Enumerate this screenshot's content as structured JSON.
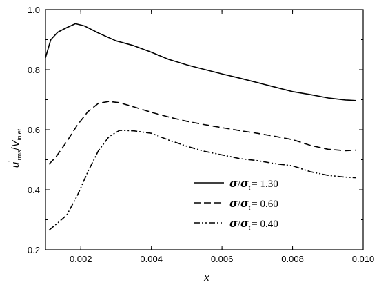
{
  "chart_data": {
    "type": "line",
    "xlabel": "x",
    "ylabel": {
      "main": "u",
      "prime": "'",
      "sub": "rms",
      "slash": "/",
      "main2": "V",
      "sub2": "inlet"
    },
    "xlim": [
      0.001,
      0.01
    ],
    "ylim": [
      0.2,
      1.0
    ],
    "x_ticks": [
      0.002,
      0.004,
      0.006,
      0.008,
      0.01
    ],
    "x_tick_labels": [
      "0.002",
      "0.004",
      "0.006",
      "0.008",
      "0.010"
    ],
    "y_ticks": [
      0.2,
      0.4,
      0.6,
      0.8,
      1.0
    ],
    "y_tick_labels": [
      "0.2",
      "0.4",
      "0.6",
      "0.8",
      "1.0"
    ],
    "grid": false,
    "legend_position": "center-right",
    "series": [
      {
        "name": "σ/σt = 1.30",
        "legend": {
          "sym1": "σ",
          "slash": "/",
          "sym2": "σ",
          "sub": "t",
          "value": "= 1.30"
        },
        "dash": "solid",
        "x": [
          0.001,
          0.00115,
          0.00135,
          0.0016,
          0.00185,
          0.0021,
          0.0025,
          0.003,
          0.0035,
          0.004,
          0.0045,
          0.005,
          0.0055,
          0.006,
          0.0065,
          0.007,
          0.0075,
          0.008,
          0.0085,
          0.009,
          0.0095,
          0.0098
        ],
        "y": [
          0.84,
          0.9,
          0.925,
          0.94,
          0.953,
          0.946,
          0.922,
          0.896,
          0.88,
          0.858,
          0.834,
          0.816,
          0.801,
          0.786,
          0.772,
          0.757,
          0.742,
          0.727,
          0.717,
          0.706,
          0.699,
          0.697
        ]
      },
      {
        "name": "σ/σt = 0.60",
        "legend": {
          "sym1": "σ",
          "slash": "/",
          "sym2": "σ",
          "sub": "t",
          "value": "= 0.60"
        },
        "dash": "dashed",
        "x": [
          0.0011,
          0.0013,
          0.0016,
          0.0019,
          0.0022,
          0.0025,
          0.0028,
          0.0031,
          0.0035,
          0.004,
          0.0045,
          0.005,
          0.0055,
          0.006,
          0.0065,
          0.007,
          0.0075,
          0.008,
          0.0085,
          0.009,
          0.0095,
          0.0098
        ],
        "y": [
          0.485,
          0.51,
          0.56,
          0.615,
          0.66,
          0.688,
          0.694,
          0.69,
          0.676,
          0.658,
          0.642,
          0.628,
          0.617,
          0.607,
          0.597,
          0.588,
          0.578,
          0.567,
          0.548,
          0.535,
          0.53,
          0.532
        ]
      },
      {
        "name": "σ/σt = 0.40",
        "legend": {
          "sym1": "σ",
          "slash": "/",
          "sym2": "σ",
          "sub": "t",
          "value": "= 0.40"
        },
        "dash": "dash-dot-dot",
        "x": [
          0.0011,
          0.0013,
          0.0016,
          0.0019,
          0.0022,
          0.0025,
          0.0028,
          0.0031,
          0.0035,
          0.004,
          0.0045,
          0.005,
          0.0055,
          0.006,
          0.0065,
          0.007,
          0.0075,
          0.008,
          0.0085,
          0.009,
          0.0095,
          0.0098
        ],
        "y": [
          0.265,
          0.285,
          0.315,
          0.38,
          0.46,
          0.53,
          0.577,
          0.598,
          0.596,
          0.588,
          0.565,
          0.545,
          0.528,
          0.516,
          0.504,
          0.497,
          0.487,
          0.48,
          0.46,
          0.448,
          0.442,
          0.44
        ]
      }
    ]
  }
}
